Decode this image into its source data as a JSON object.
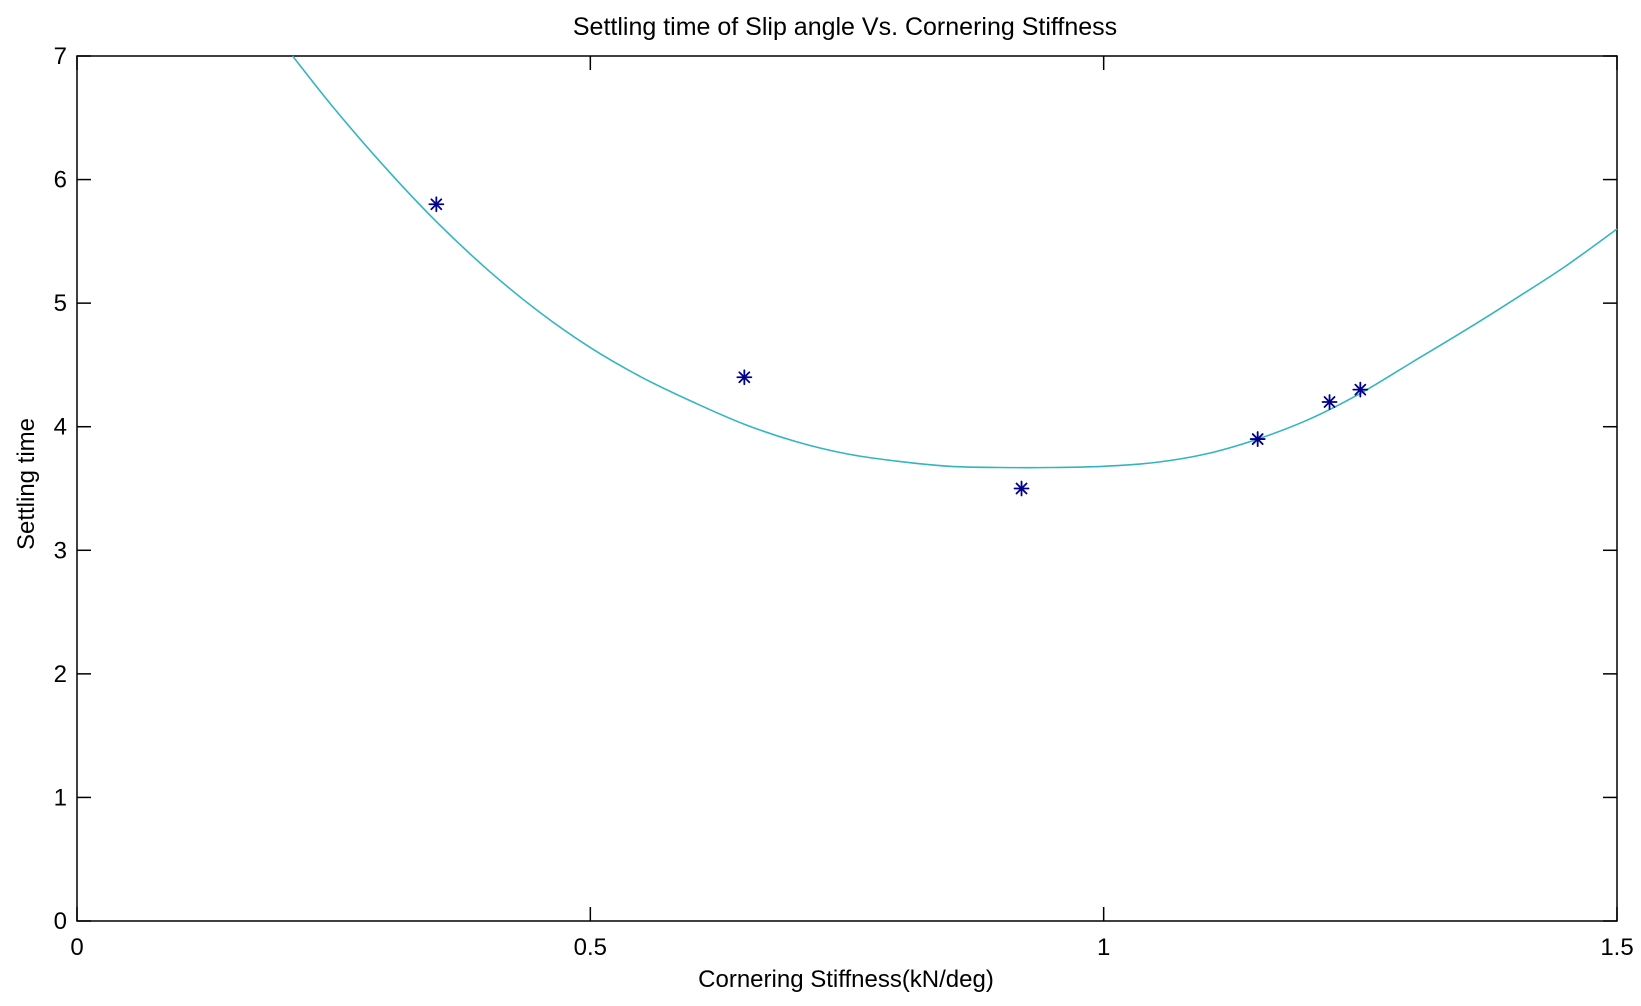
{
  "chart_data": {
    "type": "scatter",
    "title": "Settling time of Slip angle Vs. Cornering Stiffness",
    "xlabel": "Cornering Stiffness(kN/deg)",
    "ylabel": "Settling time",
    "xlim": [
      0,
      1.5
    ],
    "ylim": [
      0,
      7
    ],
    "x_ticks": [
      0,
      0.5,
      1,
      1.5
    ],
    "x_tick_labels": [
      "0",
      "0.5",
      "1",
      "1.5"
    ],
    "y_ticks": [
      0,
      1,
      2,
      3,
      4,
      5,
      6,
      7
    ],
    "y_tick_labels": [
      "0",
      "1",
      "2",
      "3",
      "4",
      "5",
      "6",
      "7"
    ],
    "grid": false,
    "series": [
      {
        "kind": "points",
        "marker": "asterisk",
        "color": "#00008b",
        "x": [
          0.35,
          0.65,
          0.92,
          1.15,
          1.22,
          1.25
        ],
        "y": [
          5.8,
          4.4,
          3.5,
          3.9,
          4.2,
          4.3
        ]
      },
      {
        "kind": "fit-curve",
        "color": "#33b5c0",
        "x": [
          0.21,
          0.25,
          0.3,
          0.35,
          0.4,
          0.45,
          0.5,
          0.55,
          0.6,
          0.65,
          0.7,
          0.75,
          0.8,
          0.85,
          0.9,
          0.95,
          1.0,
          1.05,
          1.1,
          1.15,
          1.2,
          1.25,
          1.3,
          1.35,
          1.4,
          1.45,
          1.5
        ],
        "y": [
          7.0,
          6.58,
          6.1,
          5.66,
          5.27,
          4.93,
          4.64,
          4.4,
          4.2,
          4.02,
          3.88,
          3.78,
          3.72,
          3.68,
          3.67,
          3.67,
          3.68,
          3.71,
          3.78,
          3.9,
          4.06,
          4.27,
          4.52,
          4.77,
          5.03,
          5.3,
          5.6
        ]
      }
    ]
  }
}
